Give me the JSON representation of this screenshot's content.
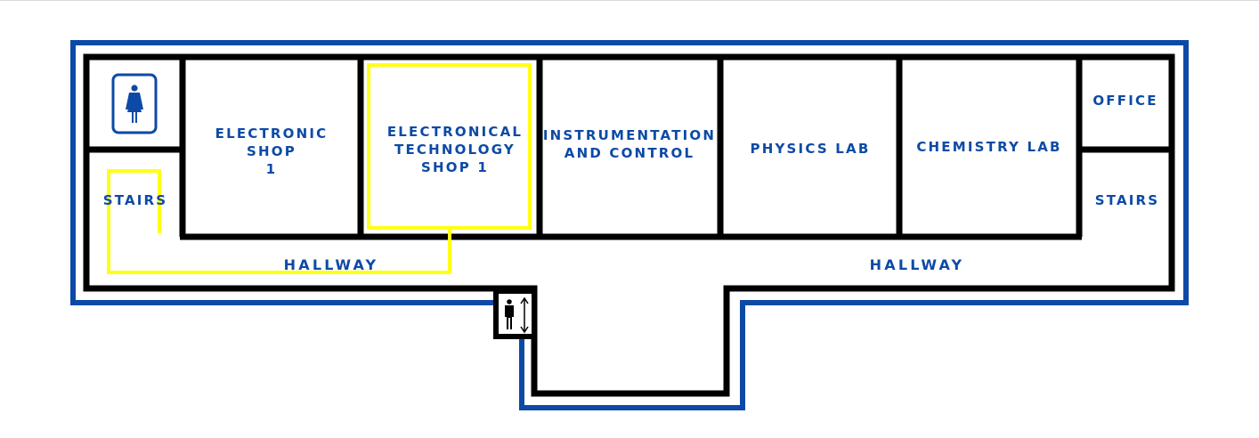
{
  "colors": {
    "outline": "#0d4aa6",
    "walls": "#000000",
    "route": "#ffff14",
    "label": "#0d4aa6"
  },
  "icons": {
    "restroom": "woman-restroom-icon",
    "elevator": "elevator-icon"
  },
  "rooms": {
    "electronic_shop": "ELECTRONIC\nSHOP\n1",
    "electronical_tech_shop": "ELECTRONICAL\nTECHNOLOGY\nSHOP 1",
    "instrumentation": "INSTRUMENTATION\nAND CONTROL",
    "physics": "PHYSICS LAB",
    "chemistry": "CHEMISTRY LAB",
    "office": "OFFICE",
    "stairs_left": "STAIRS",
    "stairs_right": "STAIRS",
    "hallway_left": "HALLWAY",
    "hallway_right": "HALLWAY"
  }
}
